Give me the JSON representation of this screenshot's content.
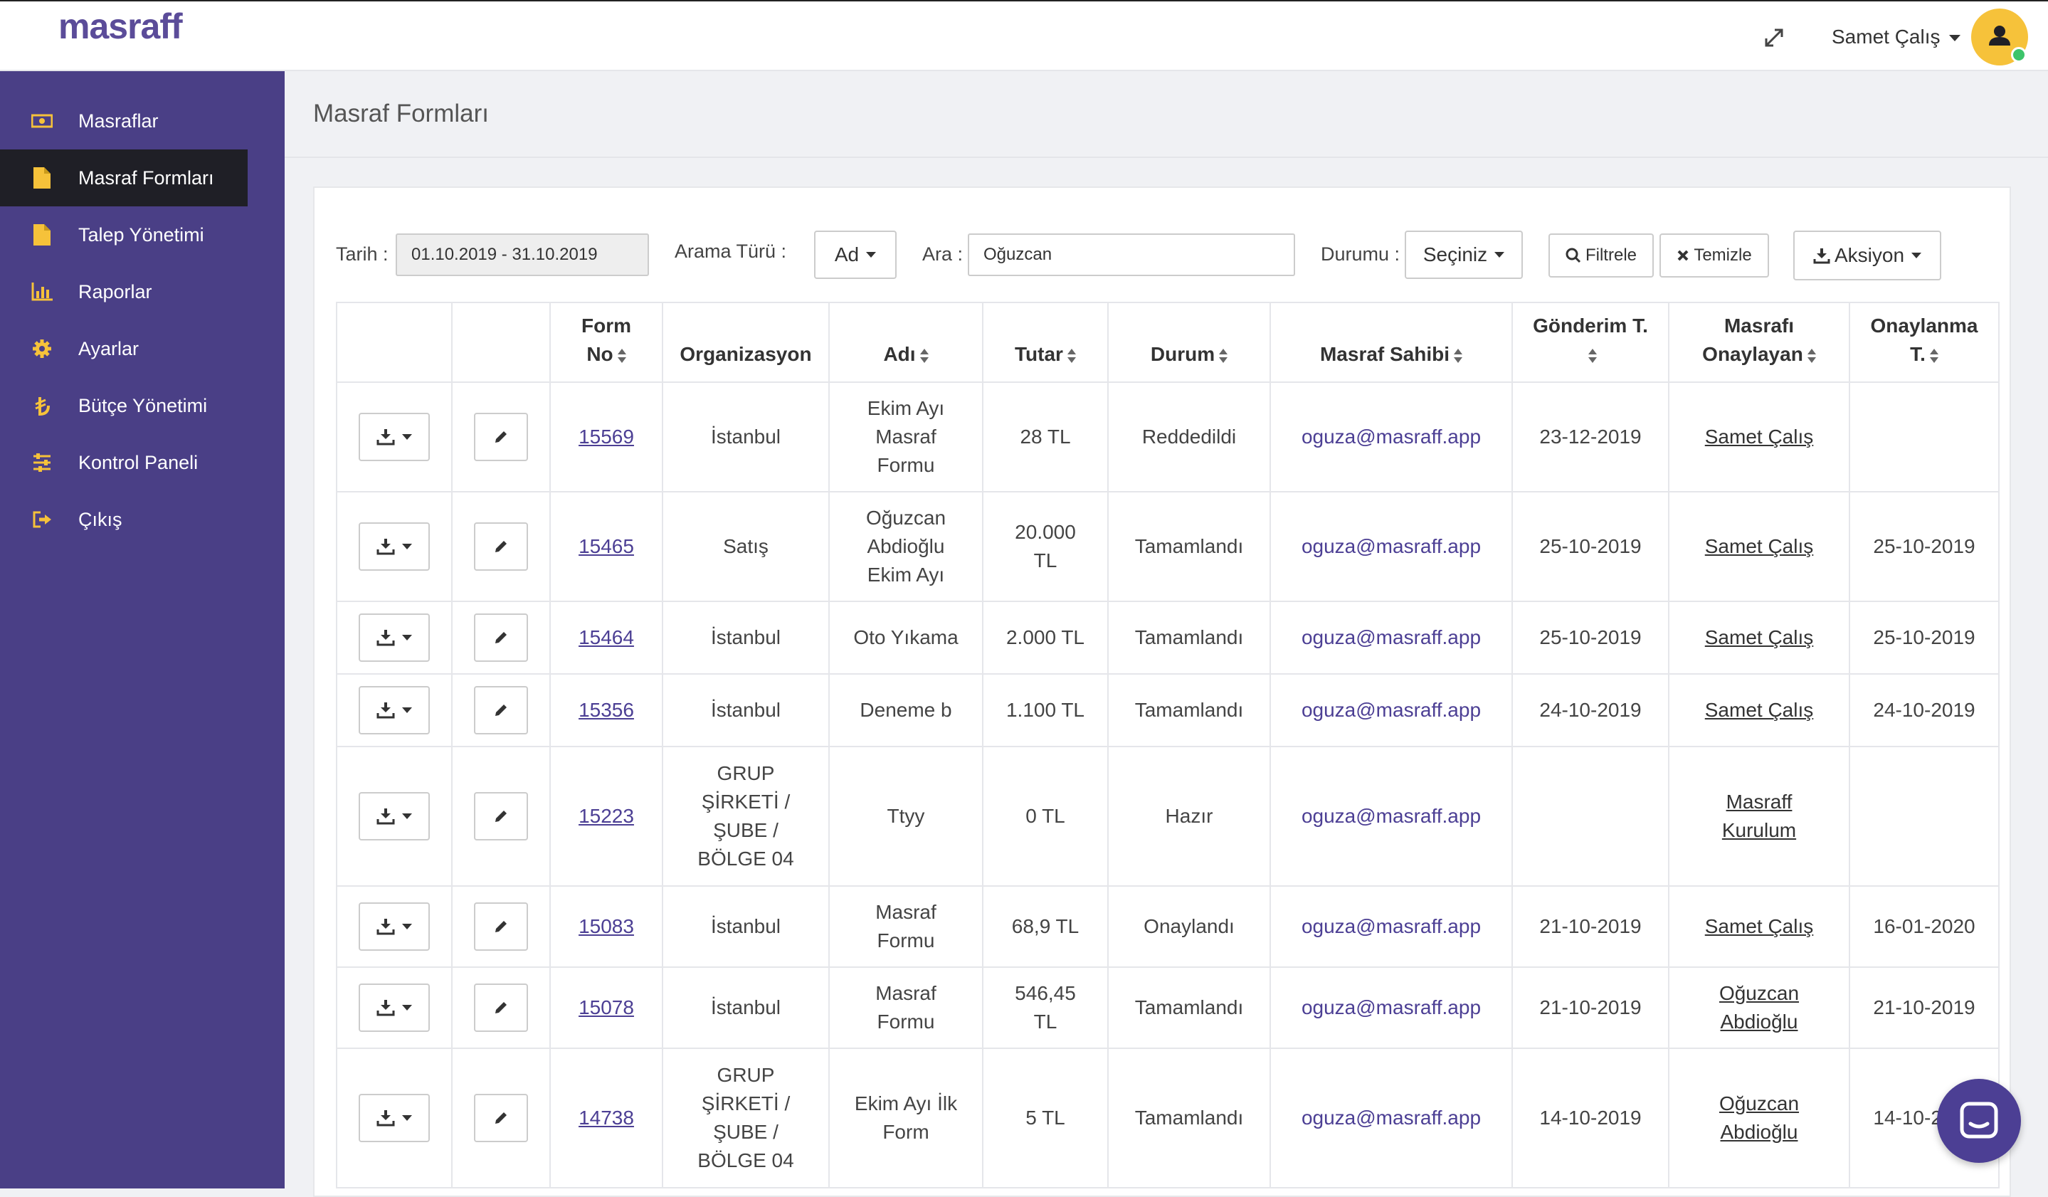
{
  "app": {
    "logo": "masraff"
  },
  "header": {
    "user_name": "Samet Çalış"
  },
  "sidebar": {
    "items": [
      {
        "label": "Masraflar",
        "icon": "money-icon"
      },
      {
        "label": "Masraf Formları",
        "icon": "file-icon",
        "active": true
      },
      {
        "label": "Talep Yönetimi",
        "icon": "file-icon"
      },
      {
        "label": "Raporlar",
        "icon": "bar-chart-icon"
      },
      {
        "label": "Ayarlar",
        "icon": "gear-icon"
      },
      {
        "label": "Bütçe Yönetimi",
        "icon": "lira-icon"
      },
      {
        "label": "Kontrol Paneli",
        "icon": "sliders-icon"
      },
      {
        "label": "Çıkış",
        "icon": "logout-icon"
      }
    ]
  },
  "page": {
    "title": "Masraf Formları"
  },
  "filters": {
    "date_label": "Tarih :",
    "date_value": "01.10.2019 - 31.10.2019",
    "search_type_label": "Arama Türü :",
    "search_type_value": "Ad",
    "search_label": "Ara :",
    "search_value": "Oğuzcan",
    "status_label": "Durumu :",
    "status_value": "Seçiniz",
    "filter_button": "Filtrele",
    "clear_button": "Temizle",
    "action_button": "Aksiyon"
  },
  "table": {
    "headers": {
      "form_no": [
        "Form",
        "No"
      ],
      "organization": "Organizasyon",
      "name": "Adı",
      "amount": "Tutar",
      "status": "Durum",
      "owner": "Masraf Sahibi",
      "sent_date": "Gönderim T.",
      "approver": [
        "Masrafı",
        "Onaylayan"
      ],
      "approved_date": [
        "Onaylanma",
        "T."
      ]
    },
    "rows": [
      {
        "form_no": "15569",
        "org": [
          "İstanbul"
        ],
        "name": [
          "Ekim Ayı",
          "Masraf",
          "Formu"
        ],
        "amount": [
          "28 TL"
        ],
        "status": "Reddedildi",
        "owner": "oguza@masraff.app",
        "sent": "23-12-2019",
        "approver": [
          "Samet Çalış"
        ],
        "approved": ""
      },
      {
        "form_no": "15465",
        "org": [
          "Satış"
        ],
        "name": [
          "Oğuzcan",
          "Abdioğlu",
          "Ekim Ayı"
        ],
        "amount": [
          "20.000",
          "TL"
        ],
        "status": "Tamamlandı",
        "owner": "oguza@masraff.app",
        "sent": "25-10-2019",
        "approver": [
          "Samet Çalış"
        ],
        "approved": "25-10-2019"
      },
      {
        "form_no": "15464",
        "org": [
          "İstanbul"
        ],
        "name": [
          "Oto Yıkama"
        ],
        "amount": [
          "2.000 TL"
        ],
        "status": "Tamamlandı",
        "owner": "oguza@masraff.app",
        "sent": "25-10-2019",
        "approver": [
          "Samet Çalış"
        ],
        "approved": "25-10-2019"
      },
      {
        "form_no": "15356",
        "org": [
          "İstanbul"
        ],
        "name": [
          "Deneme b"
        ],
        "amount": [
          "1.100 TL"
        ],
        "status": "Tamamlandı",
        "owner": "oguza@masraff.app",
        "sent": "24-10-2019",
        "approver": [
          "Samet Çalış"
        ],
        "approved": "24-10-2019"
      },
      {
        "form_no": "15223",
        "org": [
          "GRUP",
          "ŞİRKETİ /",
          "ŞUBE /",
          "BÖLGE 04"
        ],
        "name": [
          "Ttyy"
        ],
        "amount": [
          "0 TL"
        ],
        "status": "Hazır",
        "owner": "oguza@masraff.app",
        "sent": "",
        "approver": [
          "Masraff",
          "Kurulum"
        ],
        "approved": ""
      },
      {
        "form_no": "15083",
        "org": [
          "İstanbul"
        ],
        "name": [
          "Masraf",
          "Formu"
        ],
        "amount": [
          "68,9 TL"
        ],
        "status": "Onaylandı",
        "owner": "oguza@masraff.app",
        "sent": "21-10-2019",
        "approver": [
          "Samet Çalış"
        ],
        "approved": "16-01-2020"
      },
      {
        "form_no": "15078",
        "org": [
          "İstanbul"
        ],
        "name": [
          "Masraf",
          "Formu"
        ],
        "amount": [
          "546,45",
          "TL"
        ],
        "status": "Tamamlandı",
        "owner": "oguza@masraff.app",
        "sent": "21-10-2019",
        "approver": [
          "Oğuzcan",
          "Abdioğlu"
        ],
        "approved": "21-10-2019"
      },
      {
        "form_no": "14738",
        "org": [
          "GRUP",
          "ŞİRKETİ /",
          "ŞUBE /",
          "BÖLGE 04"
        ],
        "name": [
          "Ekim Ayı İlk",
          "Form"
        ],
        "amount": [
          "5 TL"
        ],
        "status": "Tamamlandı",
        "owner": "oguza@masraff.app",
        "sent": "14-10-2019",
        "approver": [
          "Oğuzcan",
          "Abdioğlu"
        ],
        "approved": "14-10-2019"
      }
    ]
  },
  "colors": {
    "sidebar": "#4a3f86",
    "active_item": "#1f1f26",
    "accent": "#4c3f94",
    "icon": "#f6c23a"
  }
}
